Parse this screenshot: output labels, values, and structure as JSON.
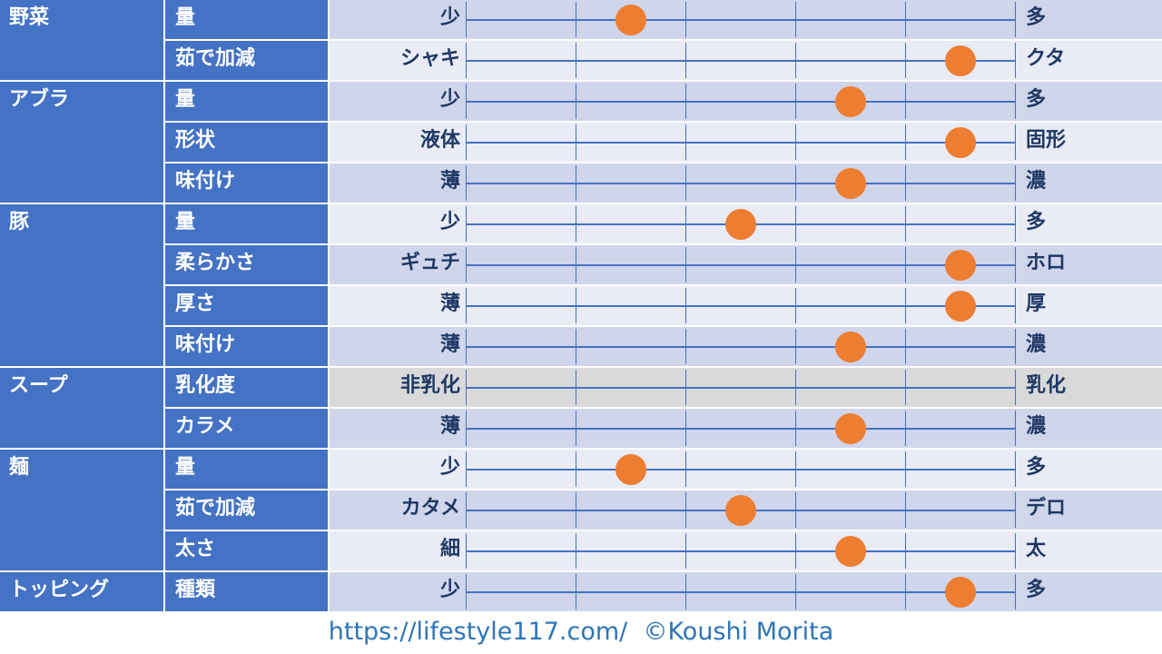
{
  "colors": {
    "header_blue": "#4472C4",
    "row_light": "#E9EBF5",
    "row_dark": "#CFD5EA",
    "row_disabled": "#D9D9D9",
    "dot": "#ED7D31",
    "end_label": "#1F3864",
    "footer": "#2E75B6"
  },
  "chart_data": {
    "type": "table",
    "scale": {
      "min": 0,
      "max": 5,
      "ticks": [
        1,
        2,
        3,
        4
      ]
    },
    "categories": [
      {
        "name": "野菜",
        "rows": [
          {
            "item": "量",
            "left": "少",
            "right": "多",
            "value": 1.5
          },
          {
            "item": "茹で加減",
            "left": "シャキ",
            "right": "クタ",
            "value": 4.5
          }
        ]
      },
      {
        "name": "アブラ",
        "rows": [
          {
            "item": "量",
            "left": "少",
            "right": "多",
            "value": 3.5
          },
          {
            "item": "形状",
            "left": "液体",
            "right": "固形",
            "value": 4.5
          },
          {
            "item": "味付け",
            "left": "薄",
            "right": "濃",
            "value": 3.5
          }
        ]
      },
      {
        "name": "豚",
        "rows": [
          {
            "item": "量",
            "left": "少",
            "right": "多",
            "value": 2.5
          },
          {
            "item": "柔らかさ",
            "left": "ギュチ",
            "right": "ホロ",
            "value": 4.5
          },
          {
            "item": "厚さ",
            "left": "薄",
            "right": "厚",
            "value": 4.5
          },
          {
            "item": "味付け",
            "left": "薄",
            "right": "濃",
            "value": 3.5
          }
        ]
      },
      {
        "name": "スープ",
        "rows": [
          {
            "item": "乳化度",
            "left": "非乳化",
            "right": "乳化",
            "value": null
          },
          {
            "item": "カラメ",
            "left": "薄",
            "right": "濃",
            "value": 3.5
          }
        ]
      },
      {
        "name": "麺",
        "rows": [
          {
            "item": "量",
            "left": "少",
            "right": "多",
            "value": 1.5
          },
          {
            "item": "茹で加減",
            "left": "カタメ",
            "right": "デロ",
            "value": 2.5
          },
          {
            "item": "太さ",
            "left": "細",
            "right": "太",
            "value": 3.5
          }
        ]
      },
      {
        "name": "トッピング",
        "rows": [
          {
            "item": "種類",
            "left": "少",
            "right": "多",
            "value": 4.5
          }
        ]
      }
    ]
  },
  "footer": {
    "text": "https://lifestyle117.com/  ©Koushi Morita"
  }
}
